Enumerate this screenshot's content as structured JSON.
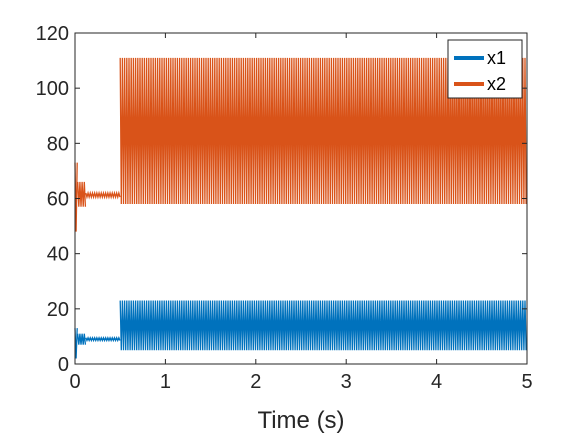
{
  "chart_data": {
    "type": "line",
    "title": "",
    "xlabel": "Time (s)",
    "ylabel": "",
    "xlim": [
      0,
      5
    ],
    "ylim": [
      0,
      120
    ],
    "x_ticks": [
      "0",
      "1",
      "2",
      "3",
      "4",
      "5"
    ],
    "y_ticks": [
      "0",
      "20",
      "40",
      "60",
      "80",
      "100",
      "120"
    ],
    "grid": false,
    "legend_position": "top-right",
    "series": [
      {
        "name": "x1",
        "color": "#0072BD",
        "segments": [
          {
            "t_start": 0.0,
            "t_end": 0.03,
            "min": 2,
            "max": 13
          },
          {
            "t_start": 0.03,
            "t_end": 0.12,
            "min": 7,
            "max": 11
          },
          {
            "t_start": 0.12,
            "t_end": 0.5,
            "min": 8.5,
            "max": 9.5
          },
          {
            "t_start": 0.5,
            "t_end": 5.0,
            "min": 5,
            "max": 23
          }
        ]
      },
      {
        "name": "x2",
        "color": "#D95319",
        "segments": [
          {
            "t_start": 0.0,
            "t_end": 0.03,
            "min": 48,
            "max": 73
          },
          {
            "t_start": 0.03,
            "t_end": 0.12,
            "min": 57,
            "max": 66
          },
          {
            "t_start": 0.12,
            "t_end": 0.5,
            "min": 60.5,
            "max": 62
          },
          {
            "t_start": 0.5,
            "t_end": 5.0,
            "min": 58,
            "max": 111
          }
        ]
      }
    ]
  }
}
